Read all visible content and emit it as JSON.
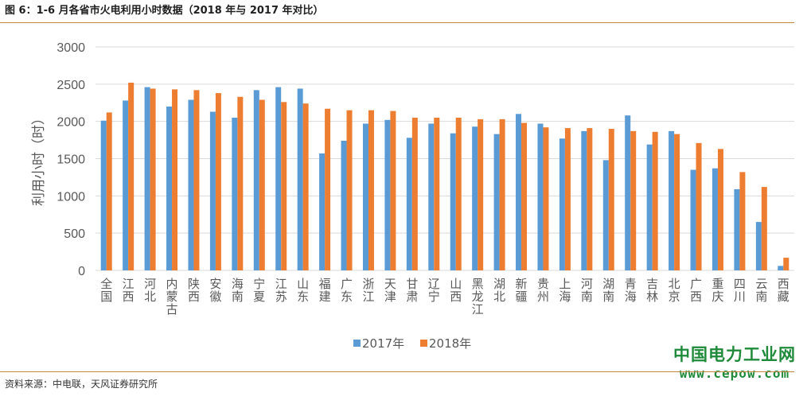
{
  "page": {
    "title": "图 6：1-6 月各省市火电利用小时数据（2018 年与 2017 年对比）",
    "source": "资料来源：中电联，天风证券研究所",
    "watermark_cn": "中国电力工业网",
    "watermark_url": "www.cepow.com"
  },
  "colors": {
    "s2017": "#5b9bd5",
    "s2018": "#ed7d31",
    "grid": "#d9d9d9",
    "axis_text": "#595959",
    "rule": "#c7893f",
    "watermark": "#1f8a3a"
  },
  "chart_data": {
    "type": "bar",
    "ylabel": "利用小时（时）",
    "ylim": [
      0,
      3000
    ],
    "yticks": [
      0,
      500,
      1000,
      1500,
      2000,
      2500,
      3000
    ],
    "grid": true,
    "legend_position": "bottom",
    "categories": [
      "全国",
      "江西",
      "河北",
      "内蒙古",
      "陕西",
      "安徽",
      "海南",
      "宁夏",
      "江苏",
      "山东",
      "福建",
      "广东",
      "浙江",
      "天津",
      "甘肃",
      "辽宁",
      "山西",
      "黑龙江",
      "湖北",
      "新疆",
      "贵州",
      "上海",
      "河南",
      "湖南",
      "青海",
      "吉林",
      "北京",
      "广西",
      "重庆",
      "四川",
      "云南",
      "西藏"
    ],
    "series": [
      {
        "name": "2017年",
        "values": [
          2010,
          2280,
          2460,
          2200,
          2290,
          2130,
          2050,
          2420,
          2460,
          2440,
          1570,
          1740,
          1970,
          2020,
          1780,
          1970,
          1840,
          1930,
          1830,
          2100,
          1970,
          1770,
          1870,
          1480,
          2080,
          1690,
          1870,
          1350,
          1370,
          1090,
          650,
          60
        ]
      },
      {
        "name": "2018年",
        "values": [
          2120,
          2520,
          2440,
          2430,
          2420,
          2380,
          2330,
          2290,
          2260,
          2240,
          2170,
          2150,
          2150,
          2140,
          2050,
          2050,
          2050,
          2030,
          2030,
          1980,
          1920,
          1910,
          1910,
          1900,
          1870,
          1860,
          1830,
          1710,
          1630,
          1320,
          1120,
          170
        ]
      }
    ]
  }
}
